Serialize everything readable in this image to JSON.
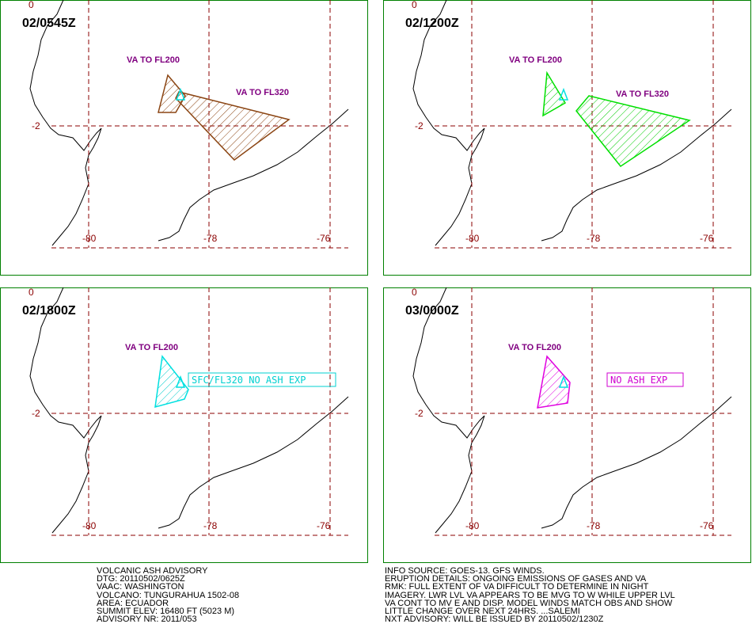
{
  "grid_labels": {
    "lat": [
      "0",
      "-2"
    ],
    "lon": [
      "-80",
      "-78",
      "-76"
    ]
  },
  "panels": [
    {
      "time": "02/0545Z",
      "labels": [
        "VA TO FL200",
        "VA TO FL320"
      ]
    },
    {
      "time": "02/1200Z",
      "labels": [
        "VA TO FL200",
        "VA TO FL320"
      ]
    },
    {
      "time": "02/1800Z",
      "labels": [
        "VA TO FL200"
      ],
      "box": "SFC/FL320 NO ASH EXP"
    },
    {
      "time": "03/0000Z",
      "labels": [
        "VA TO FL200"
      ],
      "box": "NO ASH EXP"
    }
  ],
  "footer": {
    "left": [
      "VOLCANIC ASH ADVISORY",
      "DTG: 20110502/0625Z",
      "VAAC: WASHINGTON",
      "VOLCANO: TUNGURAHUA 1502-08",
      "AREA: ECUADOR",
      "SUMMIT ELEV: 16480 FT (5023 M)",
      "ADVISORY NR: 2011/053"
    ],
    "right": [
      "INFO SOURCE: GOES-13. GFS WINDS.",
      "ERUPTION DETAILS: ONGOING EMISSIONS OF GASES AND VA",
      "RMK: FULL EXTENT OF VA DIFFICULT TO DETERMINE IN NIGHT",
      "IMAGERY. LWR LVL VA APPEARS TO BE MVG TO W WHILE UPPER LVL",
      "VA CONT TO MV E AND DISP. MODEL WINDS MATCH OBS AND SHOW",
      "LITTLE CHANGE OVER NEXT 24HRS. ...SALEMI",
      "NXT ADVISORY: WILL BE ISSUED BY 20110502/1230Z"
    ]
  }
}
